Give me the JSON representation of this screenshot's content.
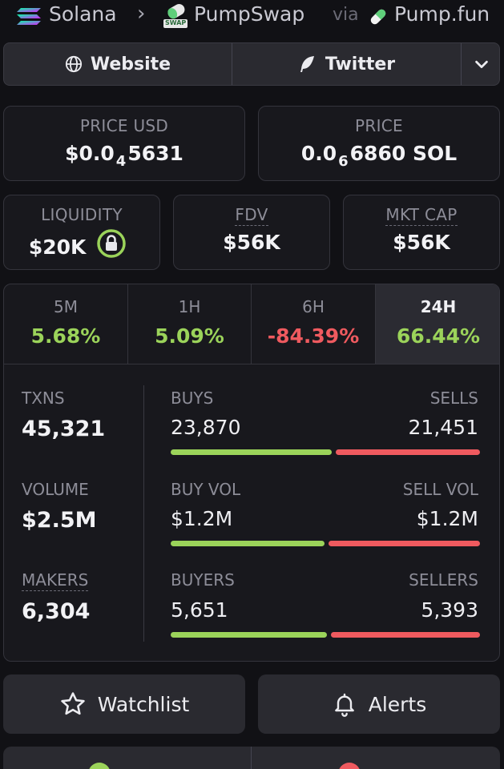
{
  "breadcrumb": {
    "chain": "Solana",
    "dex": "PumpSwap",
    "dex_badge": "SWAP",
    "via_text": "via",
    "launchpad": "Pump.fun"
  },
  "links": {
    "website_label": "Website",
    "twitter_label": "Twitter"
  },
  "price_usd": {
    "label": "PRICE USD",
    "prefix": "$0.0",
    "zeros": "4",
    "digits": "5631"
  },
  "price_native": {
    "label": "PRICE",
    "prefix": "0.0",
    "zeros": "6",
    "digits": "6860",
    "unit": "SOL"
  },
  "liquidity": {
    "label": "LIQUIDITY",
    "value": "$20K"
  },
  "fdv": {
    "label": "FDV",
    "value": "$56K"
  },
  "mkt_cap": {
    "label": "MKT CAP",
    "value": "$56K"
  },
  "timeframes": [
    {
      "label": "5M",
      "change": "5.68%",
      "trend": "up"
    },
    {
      "label": "1H",
      "change": "5.09%",
      "trend": "up"
    },
    {
      "label": "6H",
      "change": "-84.39%",
      "trend": "down"
    },
    {
      "label": "24H",
      "change": "66.44%",
      "trend": "up",
      "active": true
    }
  ],
  "stats": {
    "txns_label": "TXNS",
    "txns_value": "45,321",
    "volume_label": "VOLUME",
    "volume_value": "$2.5M",
    "makers_label": "MAKERS",
    "makers_value": "6,304",
    "rows": [
      {
        "left_label": "BUYS",
        "left_value": "23,870",
        "right_label": "SELLS",
        "right_value": "21,451",
        "buy_share": 0.527
      },
      {
        "left_label": "BUY VOL",
        "left_value": "$1.2M",
        "right_label": "SELL VOL",
        "right_value": "$1.2M",
        "buy_share": 0.505
      },
      {
        "left_label": "BUYERS",
        "left_value": "5,651",
        "right_label": "SELLERS",
        "right_value": "5,393",
        "buy_share": 0.512
      }
    ]
  },
  "actions": {
    "watchlist_label": "Watchlist",
    "alerts_label": "Alerts"
  },
  "colors": {
    "positive": "#9bd35a",
    "negative": "#ef5a5f",
    "background": "#111115",
    "panel": "#18181d"
  }
}
